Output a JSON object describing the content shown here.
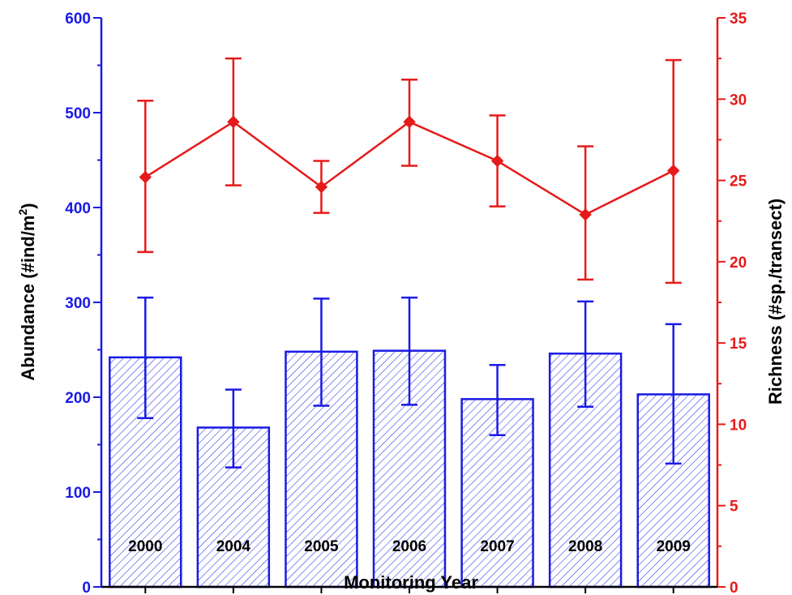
{
  "chart_data": {
    "type": "bar+line",
    "categories": [
      "2000",
      "2004",
      "2005",
      "2006",
      "2007",
      "2008",
      "2009"
    ],
    "xlabel": "Monitoring Year",
    "ylabel_left": "Abundance (#ind/m",
    "ylabel_left_sup": "2",
    "ylabel_left_end": ")",
    "ylabel_right": "Richness (#sp./transect)",
    "ylim_left": [
      0,
      600
    ],
    "yticks_left": [
      0,
      100,
      200,
      300,
      400,
      500,
      600
    ],
    "ylim_right": [
      0,
      35
    ],
    "yticks_right": [
      0,
      5,
      10,
      15,
      20,
      25,
      30,
      35
    ],
    "grid": false,
    "series": [
      {
        "kind": "bar",
        "axis": "left",
        "values": [
          242,
          168,
          248,
          249,
          198,
          246,
          203
        ],
        "err_low": [
          178,
          126,
          191,
          192,
          160,
          190,
          130
        ],
        "err_high": [
          305,
          208,
          304,
          305,
          234,
          301,
          277
        ]
      },
      {
        "kind": "line",
        "axis": "right",
        "values": [
          25.2,
          28.6,
          24.6,
          28.6,
          26.2,
          22.9,
          25.6
        ],
        "err_low": [
          20.6,
          24.7,
          23.0,
          25.9,
          23.4,
          18.9,
          18.7
        ],
        "err_high": [
          29.9,
          32.5,
          26.2,
          31.2,
          29.0,
          27.1,
          32.4
        ]
      }
    ],
    "colors": {
      "bar": "#1a1ae6",
      "line": "#e61a1a",
      "axis_left": "#1a1ae6",
      "axis_right": "#e61a1a"
    }
  }
}
